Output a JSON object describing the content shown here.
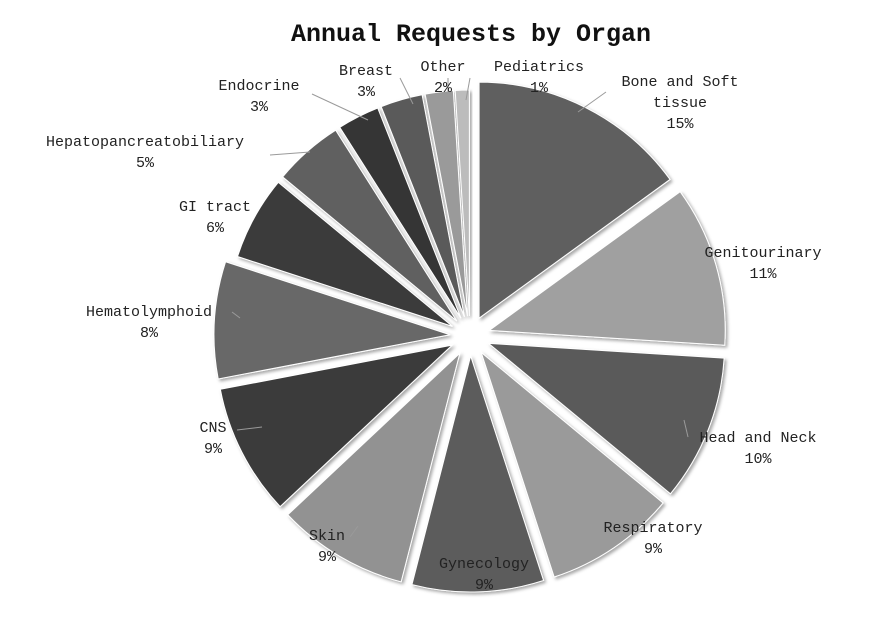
{
  "chart_data": {
    "type": "pie",
    "title": "Annual Requests by Organ",
    "slices": [
      {
        "label": "Bone and Soft tissue",
        "lines": [
          "Bone and Soft",
          "tissue"
        ],
        "value": 15,
        "pct_label": "15%",
        "color": "#5e5e5e"
      },
      {
        "label": "Genitourinary",
        "lines": [
          "Genitourinary"
        ],
        "value": 11,
        "pct_label": "11%",
        "color": "#a0a0a0"
      },
      {
        "label": "Head and Neck",
        "lines": [
          "Head and Neck"
        ],
        "value": 10,
        "pct_label": "10%",
        "color": "#5a5a5a"
      },
      {
        "label": "Respiratory",
        "lines": [
          "Respiratory"
        ],
        "value": 9,
        "pct_label": "9%",
        "color": "#9a9a9a"
      },
      {
        "label": "Gynecology",
        "lines": [
          "Gynecology"
        ],
        "value": 9,
        "pct_label": "9%",
        "color": "#5c5c5c"
      },
      {
        "label": "Skin",
        "lines": [
          "Skin"
        ],
        "value": 9,
        "pct_label": "9%",
        "color": "#929292"
      },
      {
        "label": "CNS",
        "lines": [
          "CNS"
        ],
        "value": 9,
        "pct_label": "9%",
        "color": "#3a3a3a"
      },
      {
        "label": "Hematolymphoid",
        "lines": [
          "Hematolymphoid"
        ],
        "value": 8,
        "pct_label": "8%",
        "color": "#686868"
      },
      {
        "label": "GI tract",
        "lines": [
          "GI tract"
        ],
        "value": 6,
        "pct_label": "6%",
        "color": "#3a3a3a"
      },
      {
        "label": "Hepatopancreatobiliary",
        "lines": [
          "Hepatopancreatobiliary"
        ],
        "value": 5,
        "pct_label": "5%",
        "color": "#606060"
      },
      {
        "label": "Endocrine",
        "lines": [
          "Endocrine"
        ],
        "value": 3,
        "pct_label": "3%",
        "color": "#353535"
      },
      {
        "label": "Breast",
        "lines": [
          "Breast"
        ],
        "value": 3,
        "pct_label": "3%",
        "color": "#5a5a5a"
      },
      {
        "label": "Other",
        "lines": [
          "Other"
        ],
        "value": 2,
        "pct_label": "2%",
        "color": "#9a9a9a"
      },
      {
        "label": "Pediatrics",
        "lines": [
          "Pediatrics"
        ],
        "value": 1,
        "pct_label": "1%",
        "color": "#bcbcbc"
      }
    ]
  }
}
